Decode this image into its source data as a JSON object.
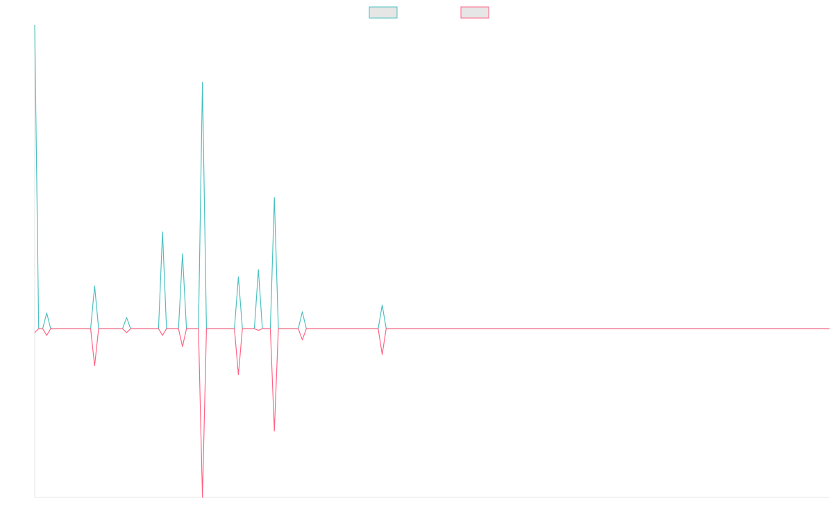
{
  "chart_data": {
    "type": "line",
    "title": "",
    "xlabel": "",
    "ylabel": "",
    "ylim": [
      -300,
      540
    ],
    "x_count": 200,
    "grid": false,
    "legend_position": "top-center",
    "series": [
      {
        "name": "",
        "color": "#4bc0c0",
        "fill": "#e6e6e6",
        "points": [
          [
            0,
            540
          ],
          [
            3,
            28
          ],
          [
            15,
            76
          ],
          [
            23,
            20
          ],
          [
            32,
            172
          ],
          [
            37,
            133
          ],
          [
            42,
            438
          ],
          [
            51,
            92
          ],
          [
            56,
            105
          ],
          [
            60,
            233
          ],
          [
            67,
            30
          ],
          [
            87,
            42
          ]
        ]
      },
      {
        "name": "",
        "color": "#ff6384",
        "fill": "#e6e6e6",
        "points": [
          [
            0,
            -7
          ],
          [
            3,
            -12
          ],
          [
            15,
            -66
          ],
          [
            23,
            -7
          ],
          [
            32,
            -12
          ],
          [
            37,
            -32
          ],
          [
            42,
            -300
          ],
          [
            51,
            -82
          ],
          [
            56,
            -3
          ],
          [
            60,
            -182
          ],
          [
            67,
            -20
          ],
          [
            87,
            -46
          ]
        ]
      }
    ]
  }
}
